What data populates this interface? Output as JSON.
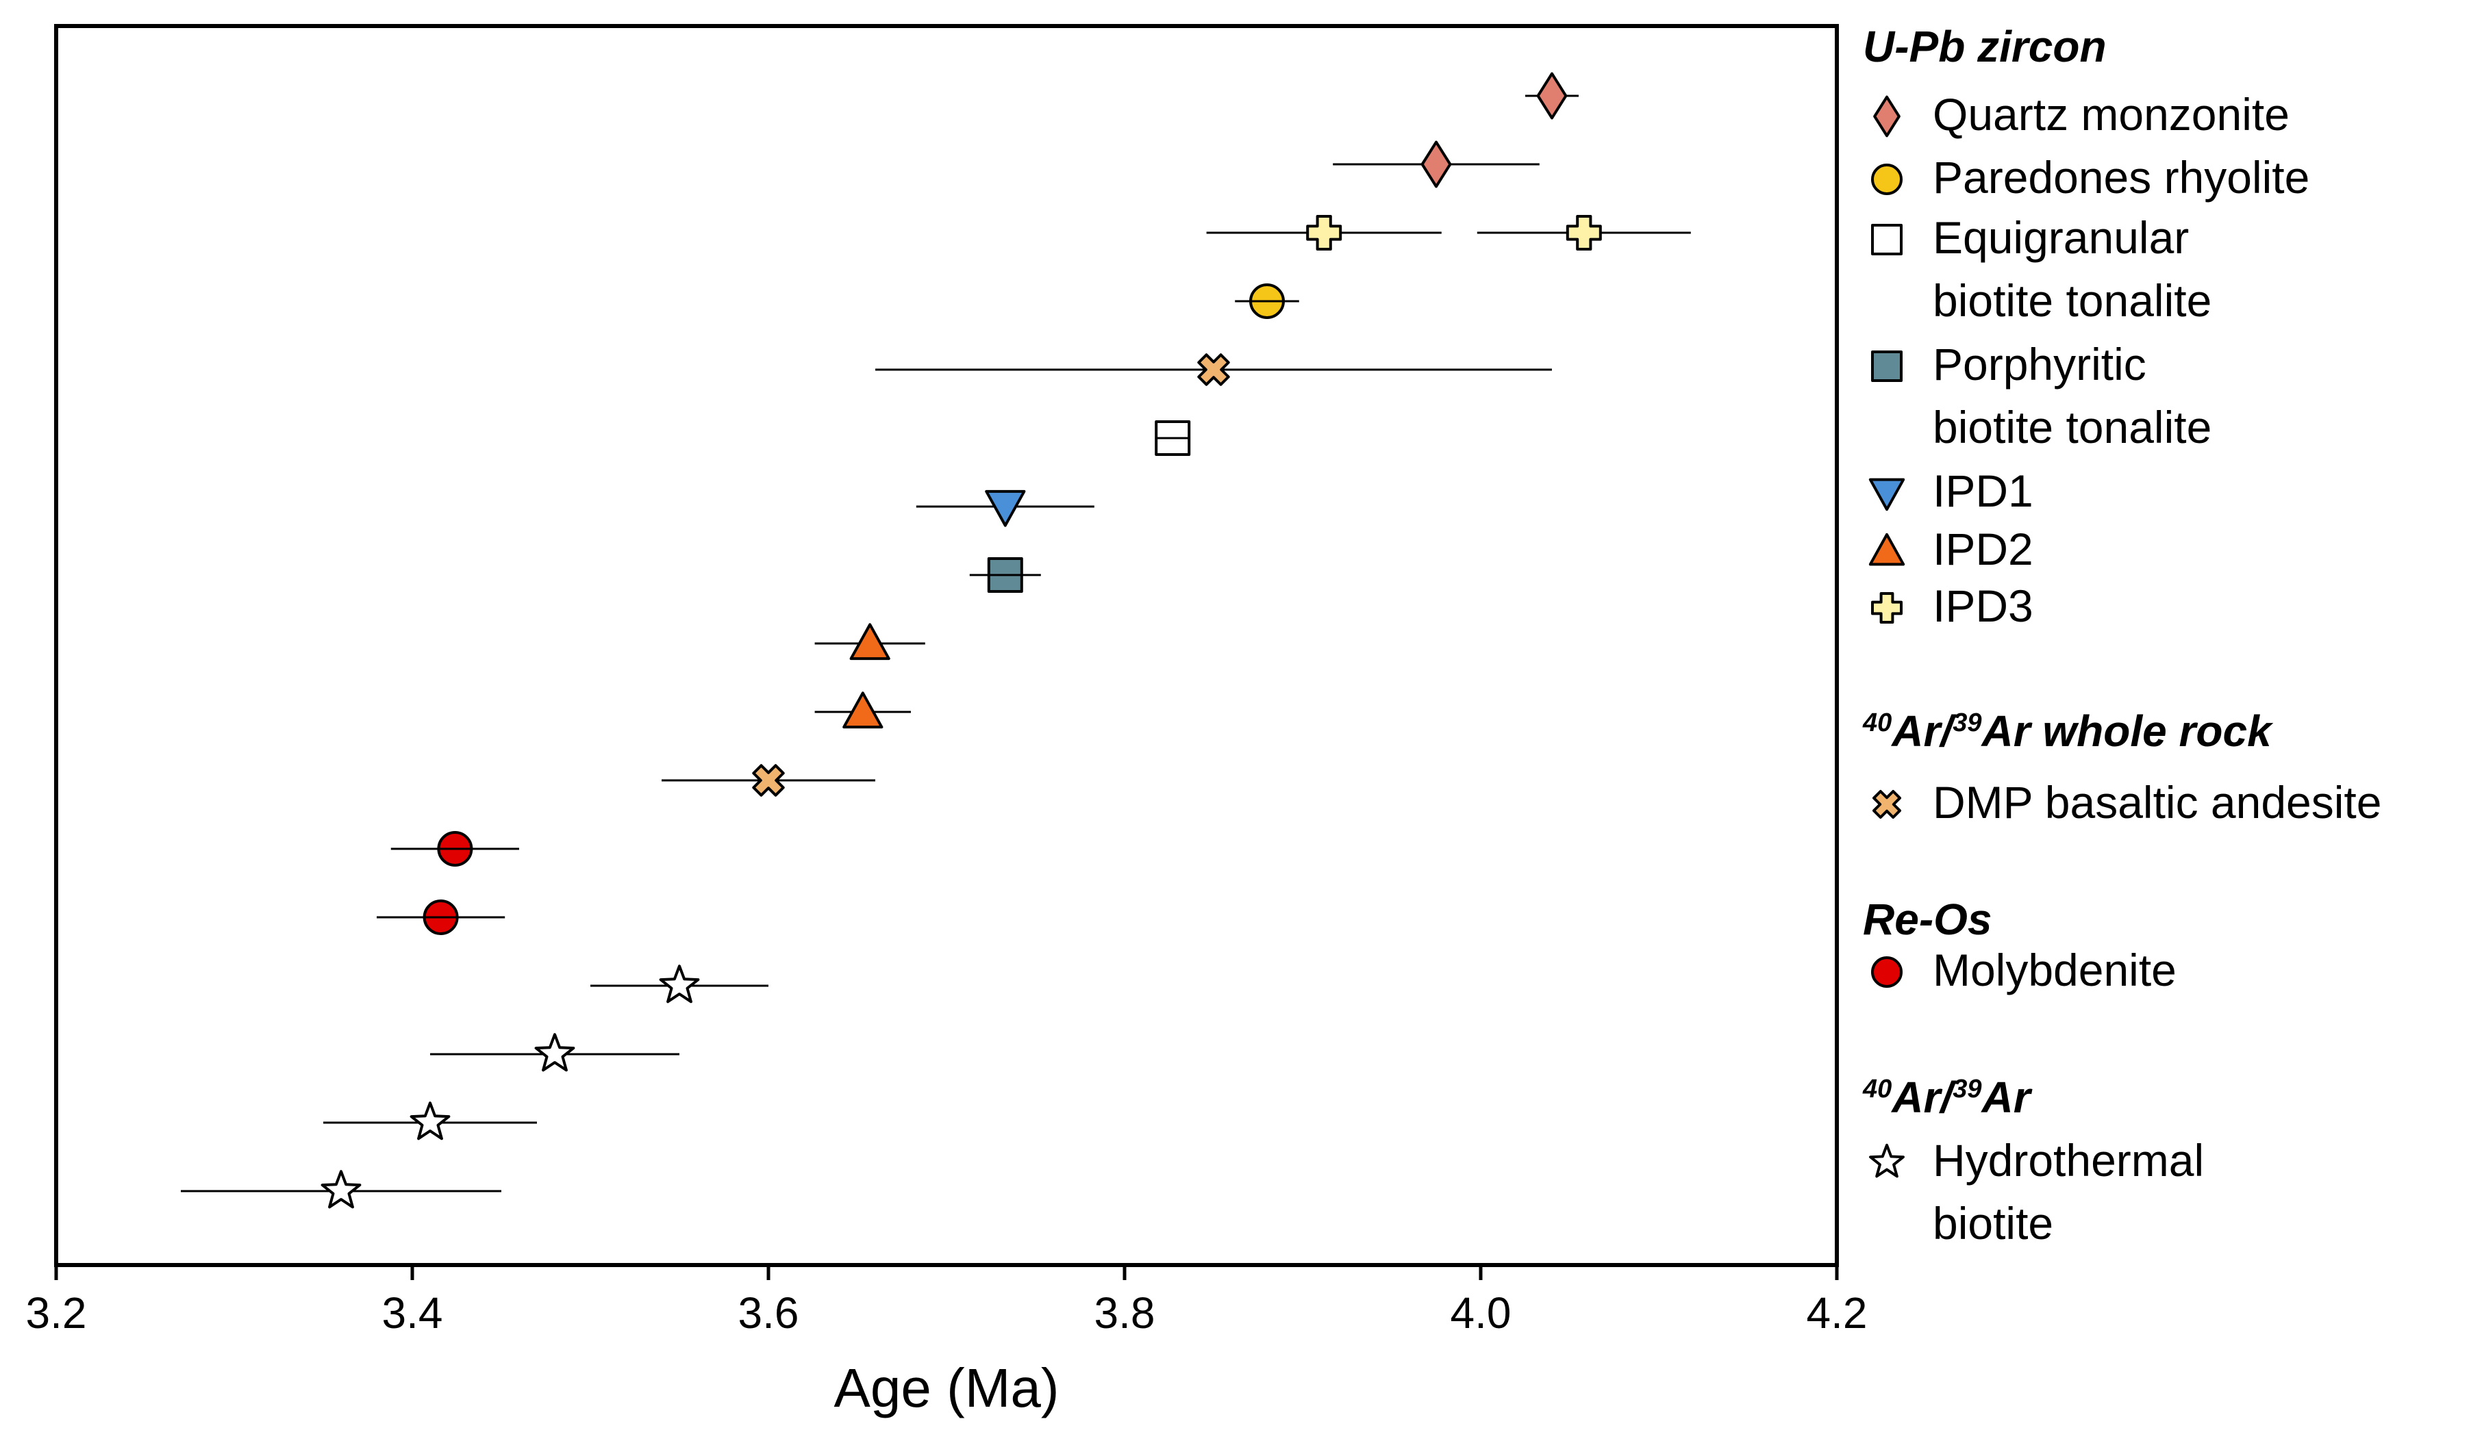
{
  "chart_data": {
    "type": "scatter",
    "xlabel": "Age (Ma)",
    "ylabel": "",
    "xlim": [
      3.2,
      4.2
    ],
    "xticks": [
      3.2,
      3.4,
      3.6,
      3.8,
      4.0,
      4.2
    ],
    "xtick_labels": [
      "3.2",
      "3.4",
      "3.6",
      "3.8",
      "4.0",
      "4.2"
    ],
    "grid": false,
    "legend_position": "right",
    "legend": [
      {
        "group": "U-Pb zircon",
        "entries": [
          {
            "key": "quartz-monzonite",
            "label": [
              "Quartz monzonite"
            ],
            "marker": "diamond",
            "color": "#e07f6f"
          },
          {
            "key": "paredones-rhyolite",
            "label": [
              "Paredones rhyolite"
            ],
            "marker": "circle",
            "color": "#f5c518"
          },
          {
            "key": "equigranular-biotite-tonalite",
            "label": [
              "Equigranular",
              "biotite tonalite"
            ],
            "marker": "square",
            "color": "#ffffff"
          },
          {
            "key": "porphyritic-biotite-tonalite",
            "label": [
              "Porphyritic",
              "biotite tonalite"
            ],
            "marker": "square",
            "color": "#5f8a96"
          },
          {
            "key": "ipd1",
            "label": [
              "IPD1"
            ],
            "marker": "triangle-down",
            "color": "#4a90d9"
          },
          {
            "key": "ipd2",
            "label": [
              "IPD2"
            ],
            "marker": "triangle-up",
            "color": "#f06a1a"
          },
          {
            "key": "ipd3",
            "label": [
              "IPD3"
            ],
            "marker": "plus",
            "color": "#fdf2a8"
          }
        ]
      },
      {
        "group": "40Ar/39Ar whole rock",
        "heading_parts": [
          {
            "sup": "40"
          },
          {
            "text": "Ar/"
          },
          {
            "sup": "39"
          },
          {
            "text": "Ar whole rock"
          }
        ],
        "entries": [
          {
            "key": "dmp-basaltic-andesite",
            "label": [
              "DMP basaltic andesite"
            ],
            "marker": "x",
            "color": "#f0b46e"
          }
        ]
      },
      {
        "group": "Re-Os",
        "entries": [
          {
            "key": "molybdenite",
            "label": [
              "Molybdenite"
            ],
            "marker": "circle",
            "color": "#e00000"
          }
        ]
      },
      {
        "group": "40Ar/39Ar",
        "heading_parts": [
          {
            "sup": "40"
          },
          {
            "text": "Ar/"
          },
          {
            "sup": "39"
          },
          {
            "text": "Ar"
          }
        ],
        "entries": [
          {
            "key": "hydrothermal-biotite",
            "label": [
              "Hydrothermal",
              "biotite"
            ],
            "marker": "star",
            "color": "#ffffff"
          }
        ]
      }
    ],
    "points": [
      {
        "series": "quartz-monzonite",
        "age": 4.04,
        "err_lo": 4.025,
        "err_hi": 4.055,
        "row": 1
      },
      {
        "series": "quartz-monzonite",
        "age": 3.975,
        "err_lo": 3.917,
        "err_hi": 4.033,
        "row": 2
      },
      {
        "series": "ipd3",
        "age": 3.912,
        "err_lo": 3.846,
        "err_hi": 3.978,
        "row": 3
      },
      {
        "series": "ipd3",
        "age": 4.058,
        "err_lo": 3.998,
        "err_hi": 4.118,
        "row": 3
      },
      {
        "series": "paredones-rhyolite",
        "age": 3.88,
        "err_lo": 3.862,
        "err_hi": 3.898,
        "row": 4
      },
      {
        "series": "dmp-basaltic-andesite",
        "age": 3.85,
        "err_lo": 3.66,
        "err_hi": 4.04,
        "row": 5
      },
      {
        "series": "equigranular-biotite-tonalite",
        "age": 3.827,
        "err_lo": 3.827,
        "err_hi": 3.827,
        "row": 6
      },
      {
        "series": "ipd1",
        "age": 3.733,
        "err_lo": 3.683,
        "err_hi": 3.783,
        "row": 7
      },
      {
        "series": "porphyritic-biotite-tonalite",
        "age": 3.733,
        "err_lo": 3.713,
        "err_hi": 3.753,
        "row": 8
      },
      {
        "series": "ipd2",
        "age": 3.657,
        "err_lo": 3.626,
        "err_hi": 3.688,
        "row": 9
      },
      {
        "series": "ipd2",
        "age": 3.653,
        "err_lo": 3.626,
        "err_hi": 3.68,
        "row": 10
      },
      {
        "series": "dmp-basaltic-andesite",
        "age": 3.6,
        "err_lo": 3.54,
        "err_hi": 3.66,
        "row": 11
      },
      {
        "series": "molybdenite",
        "age": 3.424,
        "err_lo": 3.388,
        "err_hi": 3.46,
        "row": 12
      },
      {
        "series": "molybdenite",
        "age": 3.416,
        "err_lo": 3.38,
        "err_hi": 3.452,
        "row": 13
      },
      {
        "series": "hydrothermal-biotite",
        "age": 3.55,
        "err_lo": 3.5,
        "err_hi": 3.6,
        "row": 14
      },
      {
        "series": "hydrothermal-biotite",
        "age": 3.48,
        "err_lo": 3.41,
        "err_hi": 3.55,
        "row": 15
      },
      {
        "series": "hydrothermal-biotite",
        "age": 3.41,
        "err_lo": 3.35,
        "err_hi": 3.47,
        "row": 16
      },
      {
        "series": "hydrothermal-biotite",
        "age": 3.36,
        "err_lo": 3.27,
        "err_hi": 3.45,
        "row": 17
      }
    ]
  }
}
